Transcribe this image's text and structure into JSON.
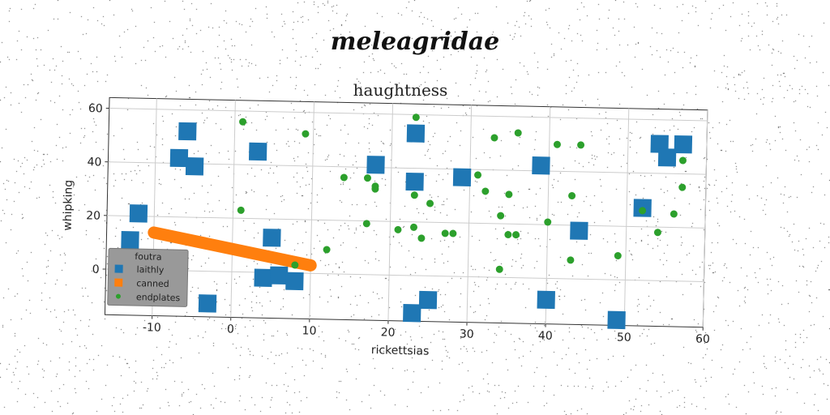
{
  "figure": {
    "suptitle": "meleagridae"
  },
  "colors": {
    "laithly": "#1f77b4",
    "canned": "#ff7f0e",
    "endplates": "#2ca02c",
    "legend_bg": "#999999"
  },
  "chart_data": {
    "type": "scatter",
    "title": "haughtness",
    "xlabel": "rickettsias",
    "ylabel": "whipking",
    "xlim": [
      -16,
      60
    ],
    "ylim": [
      -17,
      64
    ],
    "xticks": [
      -10,
      0,
      10,
      20,
      30,
      40,
      50,
      60
    ],
    "yticks": [
      0,
      20,
      40,
      60
    ],
    "grid": true,
    "legend": {
      "title": "foutra",
      "position": "lower-left"
    },
    "series": [
      {
        "name": "laithly",
        "marker": "square",
        "points": [
          [
            -6,
            52
          ],
          [
            -7,
            42
          ],
          [
            -5,
            39
          ],
          [
            3,
            45
          ],
          [
            -12,
            21
          ],
          [
            -13,
            11
          ],
          [
            5,
            13
          ],
          [
            4,
            -2
          ],
          [
            6,
            -1
          ],
          [
            8,
            -3
          ],
          [
            -3,
            -12
          ],
          [
            18,
            41
          ],
          [
            23,
            53
          ],
          [
            23,
            35
          ],
          [
            29,
            37
          ],
          [
            39,
            42
          ],
          [
            44,
            18
          ],
          [
            40,
            -8
          ],
          [
            25,
            -9
          ],
          [
            23,
            -14
          ],
          [
            49,
            -15
          ],
          [
            52,
            27
          ],
          [
            54,
            51
          ],
          [
            55,
            46
          ],
          [
            57,
            51
          ]
        ]
      },
      {
        "name": "canned",
        "marker": "line",
        "points": [
          [
            -10,
            14
          ],
          [
            0,
            8.5
          ],
          [
            10,
            3
          ]
        ]
      },
      {
        "name": "endplates",
        "marker": "circle",
        "points": [
          [
            1,
            56
          ],
          [
            9,
            52
          ],
          [
            1,
            23
          ],
          [
            8,
            3
          ],
          [
            12,
            9
          ],
          [
            14,
            36
          ],
          [
            17,
            36
          ],
          [
            18,
            33
          ],
          [
            18,
            32
          ],
          [
            17,
            19
          ],
          [
            21,
            17
          ],
          [
            23,
            59
          ],
          [
            23,
            30
          ],
          [
            23,
            18
          ],
          [
            24,
            14
          ],
          [
            25,
            27
          ],
          [
            27,
            16
          ],
          [
            28,
            16
          ],
          [
            31,
            38
          ],
          [
            32,
            32
          ],
          [
            33,
            52
          ],
          [
            34,
            3
          ],
          [
            34,
            23
          ],
          [
            35,
            31
          ],
          [
            35,
            16
          ],
          [
            36,
            16
          ],
          [
            36,
            54
          ],
          [
            40,
            21
          ],
          [
            41,
            50
          ],
          [
            43,
            7
          ],
          [
            43,
            31
          ],
          [
            44,
            50
          ],
          [
            49,
            9
          ],
          [
            52,
            26
          ],
          [
            54,
            18
          ],
          [
            56,
            25
          ],
          [
            57,
            45
          ],
          [
            57,
            35
          ]
        ]
      }
    ]
  }
}
